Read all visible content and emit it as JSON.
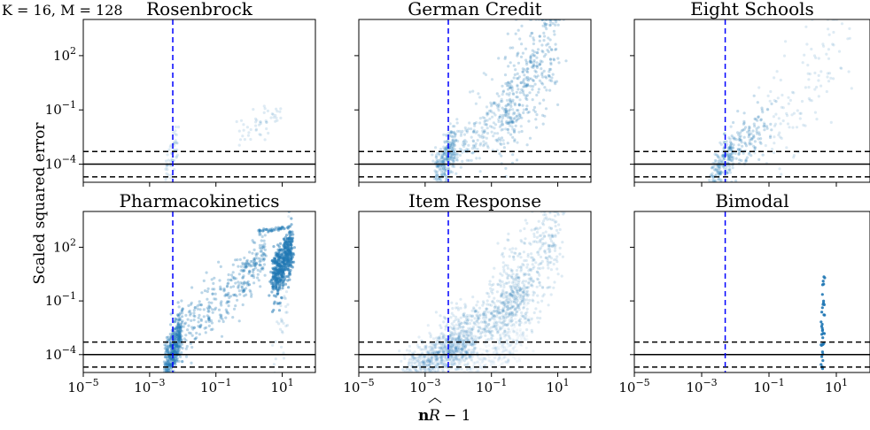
{
  "figure": {
    "suptitle": "K = 16, M = 128",
    "ylabel": "Scaled squared error",
    "xlabel": "nR̂ − 1"
  },
  "chart_data": [
    {
      "type": "scatter",
      "title": "Rosenbrock",
      "xscale": "log",
      "yscale": "log",
      "xlim": [
        1e-05,
        100
      ],
      "ylim": [
        1e-05,
        10000
      ],
      "vline_x": 0.005,
      "hlines": [
        {
          "y": 0.0005,
          "style": "dashed"
        },
        {
          "y": 0.0001,
          "style": "solid"
        },
        {
          "y": 2e-05,
          "style": "dashed"
        }
      ],
      "color": "#1f77b4",
      "clusters": [
        {
          "x": [
            0.003,
            0.007
          ],
          "y": [
            3e-05,
            0.002
          ],
          "n": 60,
          "alpha": 0.15
        },
        {
          "x": [
            0.5,
            10
          ],
          "y": [
            0.005,
            0.08
          ],
          "n": 50,
          "alpha": 0.15
        }
      ]
    },
    {
      "type": "scatter",
      "title": "German Credit",
      "xscale": "log",
      "yscale": "log",
      "xlim": [
        1e-05,
        100
      ],
      "ylim": [
        1e-05,
        10000
      ],
      "vline_x": 0.005,
      "hlines": [
        {
          "y": 0.0005,
          "style": "dashed"
        },
        {
          "y": 0.0001,
          "style": "solid"
        },
        {
          "y": 2e-05,
          "style": "dashed"
        }
      ],
      "color": "#1f77b4",
      "clusters": [
        {
          "x": [
            0.002,
            0.008
          ],
          "y": [
            2e-05,
            0.001
          ],
          "n": 250,
          "alpha": 0.2
        },
        {
          "x": [
            0.005,
            0.5
          ],
          "y": [
            0.0005,
            0.1
          ],
          "n": 250,
          "alpha": 0.2
        },
        {
          "x": [
            0.2,
            10
          ],
          "y": [
            0.05,
            2000
          ],
          "n": 350,
          "alpha": 0.25
        }
      ]
    },
    {
      "type": "scatter",
      "title": "Eight Schools",
      "xscale": "log",
      "yscale": "log",
      "xlim": [
        1e-05,
        100
      ],
      "ylim": [
        1e-05,
        10000
      ],
      "vline_x": 0.005,
      "hlines": [
        {
          "y": 0.0005,
          "style": "dashed"
        },
        {
          "y": 0.0001,
          "style": "solid"
        },
        {
          "y": 2e-05,
          "style": "dashed"
        }
      ],
      "color": "#1f77b4",
      "clusters": [
        {
          "x": [
            0.002,
            0.008
          ],
          "y": [
            1e-05,
            0.0005
          ],
          "n": 180,
          "alpha": 0.2
        },
        {
          "x": [
            0.005,
            0.1
          ],
          "y": [
            0.0002,
            0.02
          ],
          "n": 150,
          "alpha": 0.25
        },
        {
          "x": [
            0.1,
            20
          ],
          "y": [
            0.01,
            500
          ],
          "n": 120,
          "alpha": 0.15
        }
      ]
    },
    {
      "type": "scatter",
      "title": "Pharmacokinetics",
      "xscale": "log",
      "yscale": "log",
      "xlim": [
        1e-05,
        100
      ],
      "ylim": [
        1e-05,
        10000
      ],
      "vline_x": 0.005,
      "hlines": [
        {
          "y": 0.0005,
          "style": "dashed"
        },
        {
          "y": 0.0001,
          "style": "solid"
        },
        {
          "y": 2e-05,
          "style": "dashed"
        }
      ],
      "color": "#1f77b4",
      "clusters": [
        {
          "x": [
            0.003,
            0.009
          ],
          "y": [
            2e-05,
            0.002
          ],
          "n": 400,
          "alpha": 0.35
        },
        {
          "x": [
            0.008,
            0.5
          ],
          "y": [
            0.002,
            0.5
          ],
          "n": 200,
          "alpha": 0.3
        },
        {
          "x": [
            0.5,
            3
          ],
          "y": [
            1,
            100
          ],
          "n": 150,
          "alpha": 0.3
        },
        {
          "x": [
            5,
            20
          ],
          "y": [
            1,
            100
          ],
          "n": 500,
          "alpha": 0.5
        },
        {
          "x": [
            5,
            15
          ],
          "y": [
            0.0001,
            1
          ],
          "n": 40,
          "alpha": 0.15
        },
        {
          "x": [
            2,
            10
          ],
          "y": [
            800,
            1100
          ],
          "n": 40,
          "alpha": 0.4
        }
      ]
    },
    {
      "type": "scatter",
      "title": "Item Response",
      "xscale": "log",
      "yscale": "log",
      "xlim": [
        1e-05,
        100
      ],
      "ylim": [
        1e-05,
        10000
      ],
      "vline_x": 0.005,
      "hlines": [
        {
          "y": 0.0005,
          "style": "dashed"
        },
        {
          "y": 0.0001,
          "style": "solid"
        },
        {
          "y": 2e-05,
          "style": "dashed"
        }
      ],
      "color": "#1f77b4",
      "clusters": [
        {
          "x": [
            0.0003,
            0.02
          ],
          "y": [
            1e-05,
            0.0005
          ],
          "n": 700,
          "alpha": 0.12
        },
        {
          "x": [
            0.003,
            1
          ],
          "y": [
            0.0003,
            0.1
          ],
          "n": 600,
          "alpha": 0.15
        },
        {
          "x": [
            0.2,
            10
          ],
          "y": [
            0.05,
            500
          ],
          "n": 400,
          "alpha": 0.15
        },
        {
          "x": [
            0.02,
            1
          ],
          "y": [
            1e-05,
            0.001
          ],
          "n": 300,
          "alpha": 0.06
        }
      ]
    },
    {
      "type": "scatter",
      "title": "Bimodal",
      "xscale": "log",
      "yscale": "log",
      "xlim": [
        1e-05,
        100
      ],
      "ylim": [
        1e-05,
        10000
      ],
      "vline_x": 0.005,
      "hlines": [
        {
          "y": 0.0005,
          "style": "dashed"
        },
        {
          "y": 0.0001,
          "style": "solid"
        },
        {
          "y": 2e-05,
          "style": "dashed"
        }
      ],
      "color": "#1f77b4",
      "clusters": [
        {
          "x": [
            3.5,
            4.5
          ],
          "y": [
            5e-05,
            0.3
          ],
          "n": 40,
          "alpha": 0.9
        }
      ]
    }
  ]
}
